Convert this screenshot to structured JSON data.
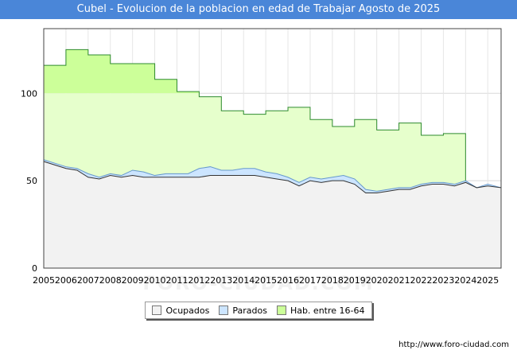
{
  "header": {
    "title": "Cubel - Evolucion de la poblacion en edad de Trabajar Agosto de 2025"
  },
  "footer": {
    "source": "http://www.foro-ciudad.com",
    "watermark": "FORO-CIUDAD.COM"
  },
  "colors": {
    "hab_fill": "#ccff99",
    "hab_line": "#2e8b2e",
    "hab_above": "#e6ffcc",
    "parados_fill": "#cce5ff",
    "parados_line": "#6699cc",
    "ocupados_fill": "#f2f2f2",
    "ocupados_line": "#333333"
  },
  "chart_data": {
    "type": "area",
    "title": "Cubel - Evolucion de la poblacion en edad de Trabajar Agosto de 2025",
    "xlabel": "",
    "ylabel": "",
    "xlim": [
      2005,
      2025.6
    ],
    "ylim": [
      0,
      137
    ],
    "y_ticks": [
      0,
      50,
      100
    ],
    "x_ticks": [
      2005,
      2006,
      2007,
      2008,
      2009,
      2010,
      2011,
      2012,
      2013,
      2014,
      2015,
      2016,
      2017,
      2018,
      2019,
      2020,
      2021,
      2022,
      2023,
      2024,
      2025
    ],
    "grid": true,
    "legend": [
      "Ocupados",
      "Parados",
      "Hab. entre 16-64"
    ],
    "legend_position": "bottom",
    "series": [
      {
        "name": "Hab. entre 16-64",
        "x": [
          2005,
          2006,
          2007,
          2008,
          2009,
          2010,
          2011,
          2012,
          2013,
          2014,
          2015,
          2016,
          2017,
          2018,
          2019,
          2020,
          2021,
          2022,
          2023,
          2024
        ],
        "values": [
          116,
          125,
          122,
          117,
          117,
          108,
          101,
          98,
          90,
          88,
          90,
          92,
          85,
          81,
          85,
          79,
          83,
          76,
          77,
          46
        ]
      },
      {
        "name": "Parados",
        "x": [
          2005,
          2005.5,
          2006,
          2006.5,
          2007,
          2007.5,
          2008,
          2008.5,
          2009,
          2009.5,
          2010,
          2010.5,
          2011,
          2011.5,
          2012,
          2012.5,
          2013,
          2013.5,
          2014,
          2014.5,
          2015,
          2015.5,
          2016,
          2016.5,
          2017,
          2017.5,
          2018,
          2018.5,
          2019,
          2019.5,
          2020,
          2020.5,
          2021,
          2021.5,
          2022,
          2022.5,
          2023,
          2023.5,
          2024,
          2024.5,
          2025,
          2025.6
        ],
        "values": [
          62,
          60,
          58,
          57,
          54,
          52,
          54,
          53,
          56,
          55,
          53,
          54,
          54,
          54,
          57,
          58,
          56,
          56,
          57,
          57,
          55,
          54,
          52,
          49,
          52,
          51,
          52,
          53,
          51,
          45,
          44,
          45,
          46,
          46,
          48,
          49,
          49,
          48,
          50,
          46,
          48,
          46
        ]
      },
      {
        "name": "Ocupados",
        "x": [
          2005,
          2005.5,
          2006,
          2006.5,
          2007,
          2007.5,
          2008,
          2008.5,
          2009,
          2009.5,
          2010,
          2010.5,
          2011,
          2011.5,
          2012,
          2012.5,
          2013,
          2013.5,
          2014,
          2014.5,
          2015,
          2015.5,
          2016,
          2016.5,
          2017,
          2017.5,
          2018,
          2018.5,
          2019,
          2019.5,
          2020,
          2020.5,
          2021,
          2021.5,
          2022,
          2022.5,
          2023,
          2023.5,
          2024,
          2024.5,
          2025,
          2025.6
        ],
        "values": [
          61,
          59,
          57,
          56,
          52,
          51,
          53,
          52,
          53,
          52,
          52,
          52,
          52,
          52,
          52,
          53,
          53,
          53,
          53,
          53,
          52,
          51,
          50,
          47,
          50,
          49,
          50,
          50,
          48,
          43,
          43,
          44,
          45,
          45,
          47,
          48,
          48,
          47,
          49,
          46,
          47,
          46
        ]
      }
    ]
  }
}
